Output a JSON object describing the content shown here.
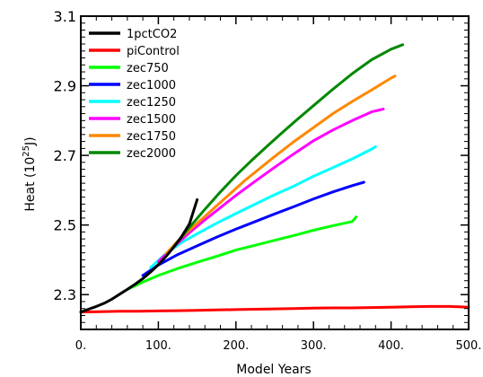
{
  "chart_data": {
    "type": "line",
    "xlabel": "Model Years",
    "ylabel": {
      "prefix": "Heat (10",
      "sup": "25",
      "suffix": "J)"
    },
    "xlim": [
      0,
      500
    ],
    "ylim": [
      2.2,
      3.1
    ],
    "xticks": [
      {
        "value": 0,
        "label": "0."
      },
      {
        "value": 100,
        "label": "100."
      },
      {
        "value": 200,
        "label": "200."
      },
      {
        "value": 300,
        "label": "300."
      },
      {
        "value": 400,
        "label": "400."
      },
      {
        "value": 500,
        "label": "500."
      }
    ],
    "yticks": [
      {
        "value": 2.3,
        "label": "2.3"
      },
      {
        "value": 2.5,
        "label": "2.5"
      },
      {
        "value": 2.7,
        "label": "2.7"
      },
      {
        "value": 2.9,
        "label": "2.9"
      },
      {
        "value": 3.1,
        "label": "3.1"
      }
    ],
    "grid": false,
    "legend_position": "top-left",
    "series": [
      {
        "name": "1pctCO2",
        "color": "#000000",
        "x": [
          0,
          10,
          20,
          30,
          40,
          50,
          60,
          70,
          80,
          90,
          100,
          110,
          120,
          130,
          140,
          150
        ],
        "y": [
          2.25,
          2.258,
          2.266,
          2.275,
          2.287,
          2.301,
          2.315,
          2.33,
          2.346,
          2.365,
          2.386,
          2.41,
          2.437,
          2.467,
          2.503,
          2.573
        ]
      },
      {
        "name": "piControl",
        "color": "#ff0000",
        "x": [
          0,
          25,
          50,
          75,
          100,
          125,
          150,
          175,
          200,
          225,
          250,
          275,
          300,
          325,
          350,
          375,
          400,
          425,
          450,
          475,
          500
        ],
        "y": [
          2.25,
          2.251,
          2.252,
          2.252,
          2.253,
          2.254,
          2.255,
          2.256,
          2.257,
          2.258,
          2.259,
          2.26,
          2.261,
          2.262,
          2.262,
          2.263,
          2.264,
          2.265,
          2.266,
          2.266,
          2.264
        ]
      },
      {
        "name": "zec750",
        "color": "#00ff00",
        "x": [
          60,
          80,
          100,
          125,
          150,
          175,
          200,
          225,
          250,
          275,
          300,
          325,
          350,
          355
        ],
        "y": [
          2.315,
          2.336,
          2.355,
          2.375,
          2.393,
          2.41,
          2.428,
          2.442,
          2.456,
          2.47,
          2.485,
          2.498,
          2.51,
          2.523
        ]
      },
      {
        "name": "zec1000",
        "color": "#0000ff",
        "x": [
          80,
          100,
          125,
          150,
          175,
          200,
          225,
          250,
          275,
          300,
          325,
          350,
          365
        ],
        "y": [
          2.355,
          2.385,
          2.415,
          2.44,
          2.465,
          2.488,
          2.51,
          2.532,
          2.553,
          2.575,
          2.595,
          2.613,
          2.623
        ]
      },
      {
        "name": "zec1250",
        "color": "#00ffff",
        "x": [
          90,
          110,
          130,
          150,
          175,
          200,
          225,
          250,
          275,
          300,
          325,
          350,
          375,
          380
        ],
        "y": [
          2.378,
          2.418,
          2.45,
          2.475,
          2.505,
          2.533,
          2.56,
          2.587,
          2.612,
          2.64,
          2.665,
          2.69,
          2.718,
          2.725
        ]
      },
      {
        "name": "zec1500",
        "color": "#ff00ff",
        "x": [
          100,
          120,
          140,
          160,
          180,
          200,
          225,
          250,
          275,
          300,
          325,
          350,
          375,
          390
        ],
        "y": [
          2.395,
          2.438,
          2.478,
          2.515,
          2.55,
          2.585,
          2.626,
          2.666,
          2.705,
          2.742,
          2.773,
          2.8,
          2.825,
          2.833
        ]
      },
      {
        "name": "zec1750",
        "color": "#ff8800",
        "x": [
          110,
          130,
          150,
          170,
          190,
          210,
          230,
          250,
          275,
          300,
          325,
          350,
          375,
          400,
          405
        ],
        "y": [
          2.418,
          2.465,
          2.505,
          2.545,
          2.585,
          2.625,
          2.661,
          2.697,
          2.74,
          2.78,
          2.82,
          2.855,
          2.888,
          2.922,
          2.928
        ]
      },
      {
        "name": "zec2000",
        "color": "#008800",
        "x": [
          120,
          140,
          160,
          180,
          200,
          220,
          240,
          260,
          280,
          300,
          325,
          350,
          375,
          400,
          415
        ],
        "y": [
          2.438,
          2.493,
          2.545,
          2.595,
          2.642,
          2.685,
          2.726,
          2.766,
          2.805,
          2.843,
          2.89,
          2.935,
          2.975,
          3.005,
          3.018
        ]
      }
    ]
  }
}
